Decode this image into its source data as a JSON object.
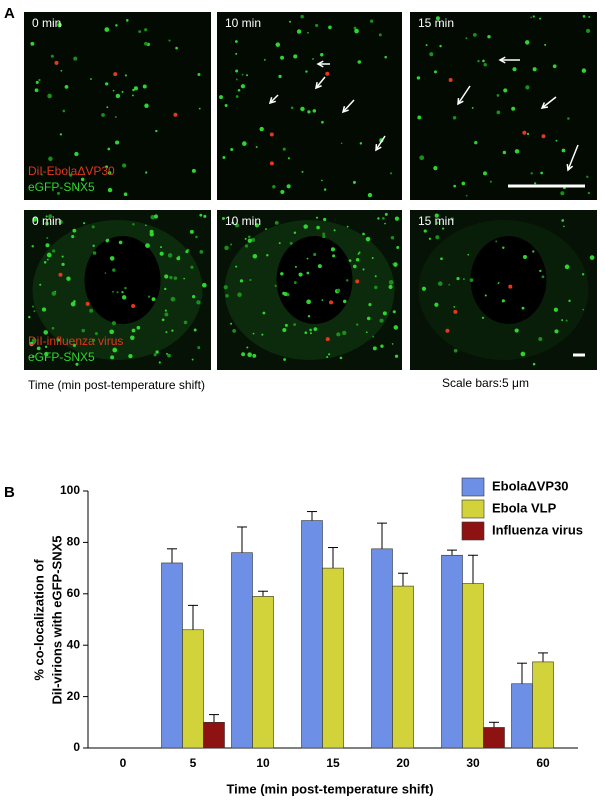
{
  "panel_a": {
    "label": "A",
    "row1": {
      "times": [
        "0 min",
        "10 min",
        "15 min"
      ],
      "legend": [
        "DiI-EbolaΔVP30",
        "eGFP-SNX5"
      ]
    },
    "row2": {
      "times": [
        "0 min",
        "10 min",
        "15 min"
      ],
      "legend": [
        "DiI-influenza virus",
        "eGFP-SNX5"
      ]
    },
    "time_note": "Time (min post-temperature shift)",
    "scale_note": "Scale bars:5 μm"
  },
  "chart_data": {
    "type": "bar",
    "panel_label": "B",
    "ylabel": [
      "% co-localization of",
      "DiI-virions with eGFP-SNX5"
    ],
    "xlabel": "Time (min post-temperature shift)",
    "categories": [
      "0",
      "5",
      "10",
      "15",
      "20",
      "30",
      "60"
    ],
    "series": [
      {
        "name": "EbolaΔVP30",
        "color": "#6d8fe6",
        "values": [
          null,
          72,
          76,
          88.5,
          77.5,
          75,
          25
        ],
        "errors": [
          null,
          5.5,
          10,
          3.5,
          10,
          2,
          8
        ]
      },
      {
        "name": "Ebola VLP",
        "color": "#d2d23a",
        "values": [
          null,
          46,
          59,
          70,
          63,
          64,
          33.5
        ],
        "errors": [
          null,
          9.5,
          2,
          8,
          5,
          11,
          3.5
        ]
      },
      {
        "name": "Influenza virus",
        "color": "#8e1212",
        "values": [
          null,
          10,
          null,
          null,
          null,
          8,
          null
        ],
        "errors": [
          null,
          3,
          null,
          null,
          null,
          2,
          null
        ]
      }
    ],
    "ylim": [
      0,
      100
    ],
    "yticks": [
      0,
      20,
      40,
      60,
      80,
      100
    ],
    "legend": "upper right"
  }
}
